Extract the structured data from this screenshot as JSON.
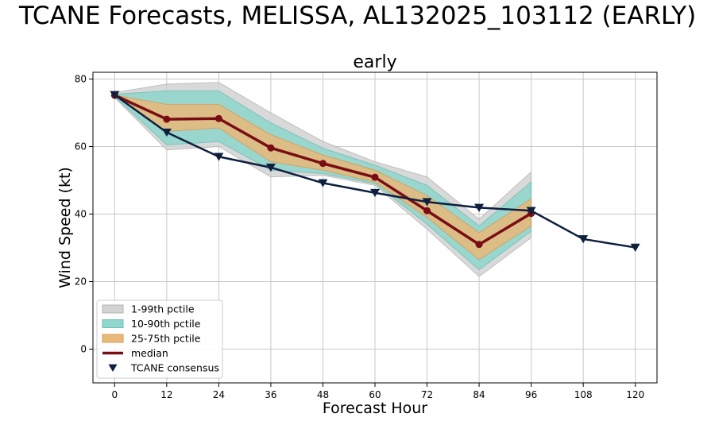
{
  "figure": {
    "suptitle": "TCANE Forecasts, MELISSA, AL132025_103112 (EARLY)"
  },
  "colors": {
    "band_1_99": "#d3d3d3",
    "band_10_90": "#8fd6cc",
    "band_25_75": "#e9b97a",
    "median": "#7a0d14",
    "consensus": "#0f1f40",
    "grid": "#c8c8c8"
  },
  "chart_data": {
    "type": "line",
    "title": "early",
    "xlabel": "Forecast Hour",
    "ylabel": "Wind Speed (kt)",
    "xlim": [
      -5,
      125
    ],
    "ylim": [
      -10,
      82
    ],
    "xticks": [
      0,
      12,
      24,
      36,
      48,
      60,
      72,
      84,
      96,
      108,
      120
    ],
    "yticks": [
      0,
      20,
      40,
      60,
      80
    ],
    "grid": true,
    "legend_position": "lower-left",
    "bands": [
      {
        "name": "1-99th pctile",
        "x": [
          0,
          12,
          24,
          36,
          48,
          60,
          72,
          84,
          96
        ],
        "low": [
          74.5,
          59,
          60,
          51,
          51.5,
          48.5,
          35.5,
          21.5,
          33
        ],
        "high": [
          76,
          78.5,
          79,
          70,
          61.5,
          55.5,
          51,
          38.5,
          52.5
        ]
      },
      {
        "name": "10-90th pctile",
        "x": [
          0,
          12,
          24,
          36,
          48,
          60,
          72,
          84,
          96
        ],
        "low": [
          74.8,
          60.5,
          61.5,
          53,
          52,
          49,
          37,
          23.5,
          35
        ],
        "high": [
          75.5,
          76.5,
          76.5,
          67,
          59.5,
          54.5,
          48.5,
          36.5,
          49.5
        ]
      },
      {
        "name": "25-75th pctile",
        "x": [
          0,
          12,
          24,
          36,
          48,
          60,
          72,
          84,
          96
        ],
        "low": [
          75,
          64.5,
          65.5,
          55.5,
          53,
          49.5,
          39,
          26.5,
          36.5
        ],
        "high": [
          75.2,
          72.5,
          72.5,
          63.5,
          57.5,
          53,
          45.5,
          34.5,
          44.5
        ]
      }
    ],
    "series": [
      {
        "name": "median",
        "x": [
          0,
          12,
          24,
          36,
          48,
          60,
          72,
          84,
          96
        ],
        "values": [
          75.2,
          68.1,
          68.3,
          59.6,
          55,
          50.9,
          41,
          31,
          40.2
        ]
      },
      {
        "name": "TCANE consensus",
        "x": [
          0,
          12,
          24,
          36,
          48,
          60,
          72,
          84,
          96,
          108,
          120
        ],
        "values": [
          75.3,
          64.2,
          57,
          53.8,
          49.2,
          46.3,
          43.6,
          41.9,
          41,
          32.6,
          30.1
        ]
      }
    ],
    "legend": [
      "1-99th pctile",
      "10-90th pctile",
      "25-75th pctile",
      "median",
      "TCANE consensus"
    ]
  }
}
